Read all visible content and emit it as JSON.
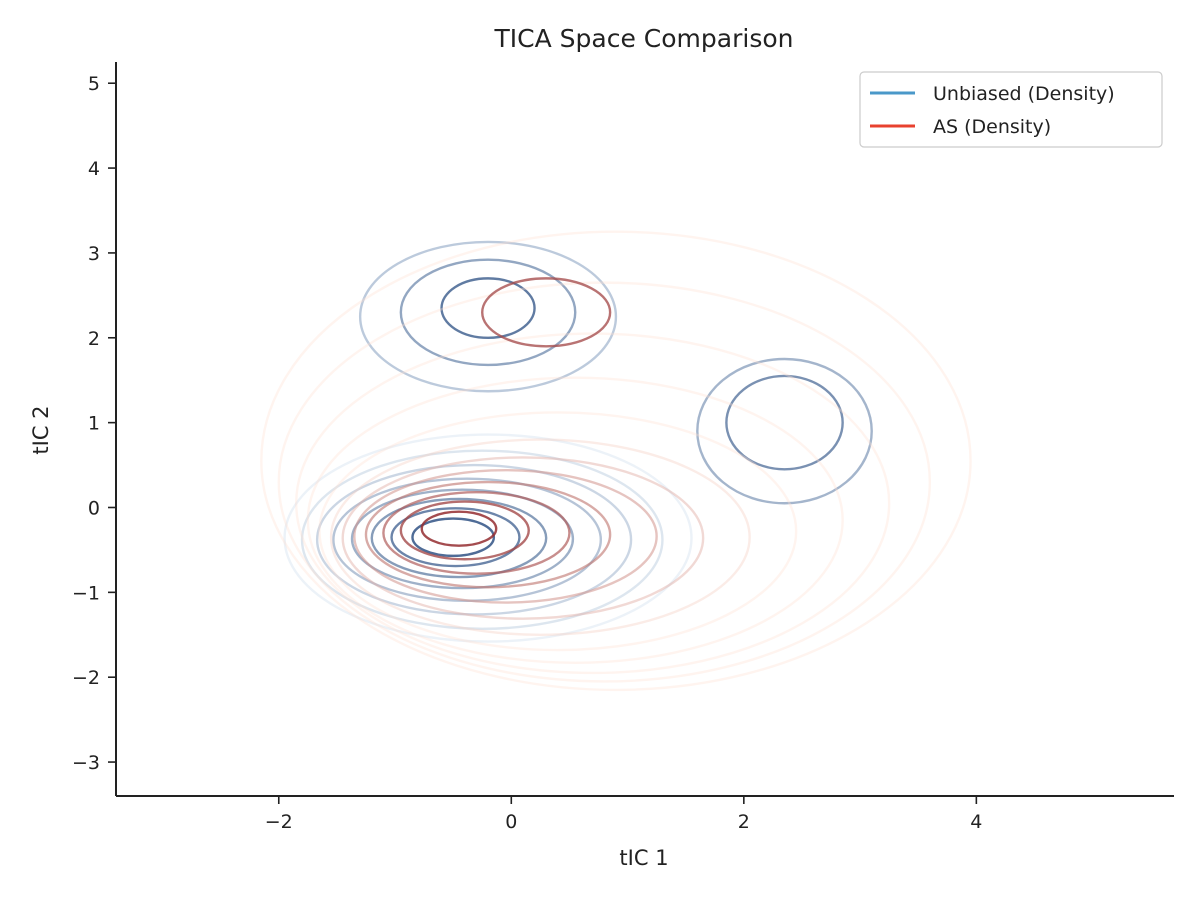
{
  "chart_data": {
    "type": "contour",
    "title": "TICA Space Comparison",
    "xlabel": "tIC 1",
    "ylabel": "tIC 2",
    "xlim": [
      -3.4,
      5.7
    ],
    "ylim": [
      -3.4,
      5.25
    ],
    "xticks": [
      -2,
      0,
      2,
      4
    ],
    "yticks": [
      -3,
      -2,
      -1,
      0,
      1,
      2,
      3,
      4,
      5
    ],
    "grid": false,
    "legend_position": "top-right",
    "series": [
      {
        "name": "Unbiased (Density)",
        "legend_color": "#4a98c9",
        "color_light": "#deebf7",
        "color_dark": "#08306b",
        "levels": [
          {
            "cx": -0.5,
            "cy": -0.35,
            "rx": 0.35,
            "ry": 0.22
          },
          {
            "cx": -0.48,
            "cy": -0.35,
            "rx": 0.55,
            "ry": 0.34
          },
          {
            "cx": -0.45,
            "cy": -0.36,
            "rx": 0.75,
            "ry": 0.46
          },
          {
            "cx": -0.42,
            "cy": -0.37,
            "rx": 0.95,
            "ry": 0.58
          },
          {
            "cx": -0.38,
            "cy": -0.38,
            "rx": 1.15,
            "ry": 0.72
          },
          {
            "cx": -0.32,
            "cy": -0.38,
            "rx": 1.35,
            "ry": 0.88
          },
          {
            "cx": -0.25,
            "cy": -0.38,
            "rx": 1.55,
            "ry": 1.05
          },
          {
            "cx": -0.2,
            "cy": -0.36,
            "rx": 1.75,
            "ry": 1.22
          },
          {
            "cx": -0.2,
            "cy": 2.35,
            "rx": 0.4,
            "ry": 0.35
          },
          {
            "cx": -0.2,
            "cy": 2.3,
            "rx": 0.75,
            "ry": 0.62
          },
          {
            "cx": -0.2,
            "cy": 2.25,
            "rx": 1.1,
            "ry": 0.88
          },
          {
            "cx": 2.35,
            "cy": 1.0,
            "rx": 0.5,
            "ry": 0.55
          },
          {
            "cx": 2.35,
            "cy": 0.9,
            "rx": 0.75,
            "ry": 0.85
          }
        ]
      },
      {
        "name": "AS (Density)",
        "legend_color": "#e8412f",
        "color_light": "#fee0d2",
        "color_dark": "#7f0a10",
        "levels": [
          {
            "cx": -0.45,
            "cy": -0.25,
            "rx": 0.32,
            "ry": 0.2
          },
          {
            "cx": -0.4,
            "cy": -0.27,
            "rx": 0.55,
            "ry": 0.34
          },
          {
            "cx": -0.3,
            "cy": -0.3,
            "rx": 0.8,
            "ry": 0.48
          },
          {
            "cx": -0.2,
            "cy": -0.32,
            "rx": 1.05,
            "ry": 0.62
          },
          {
            "cx": -0.05,
            "cy": -0.34,
            "rx": 1.3,
            "ry": 0.78
          },
          {
            "cx": 0.1,
            "cy": -0.36,
            "rx": 1.55,
            "ry": 0.95
          },
          {
            "cx": 0.25,
            "cy": -0.35,
            "rx": 1.8,
            "ry": 1.15
          },
          {
            "cx": 0.4,
            "cy": -0.28,
            "rx": 2.05,
            "ry": 1.4
          },
          {
            "cx": 0.55,
            "cy": -0.15,
            "rx": 2.3,
            "ry": 1.68
          },
          {
            "cx": 0.7,
            "cy": 0.05,
            "rx": 2.55,
            "ry": 2.0
          },
          {
            "cx": 0.8,
            "cy": 0.3,
            "rx": 2.8,
            "ry": 2.35
          },
          {
            "cx": 0.9,
            "cy": 0.55,
            "rx": 3.05,
            "ry": 2.7
          },
          {
            "cx": 0.3,
            "cy": 2.3,
            "rx": 0.55,
            "ry": 0.4
          }
        ]
      }
    ]
  }
}
